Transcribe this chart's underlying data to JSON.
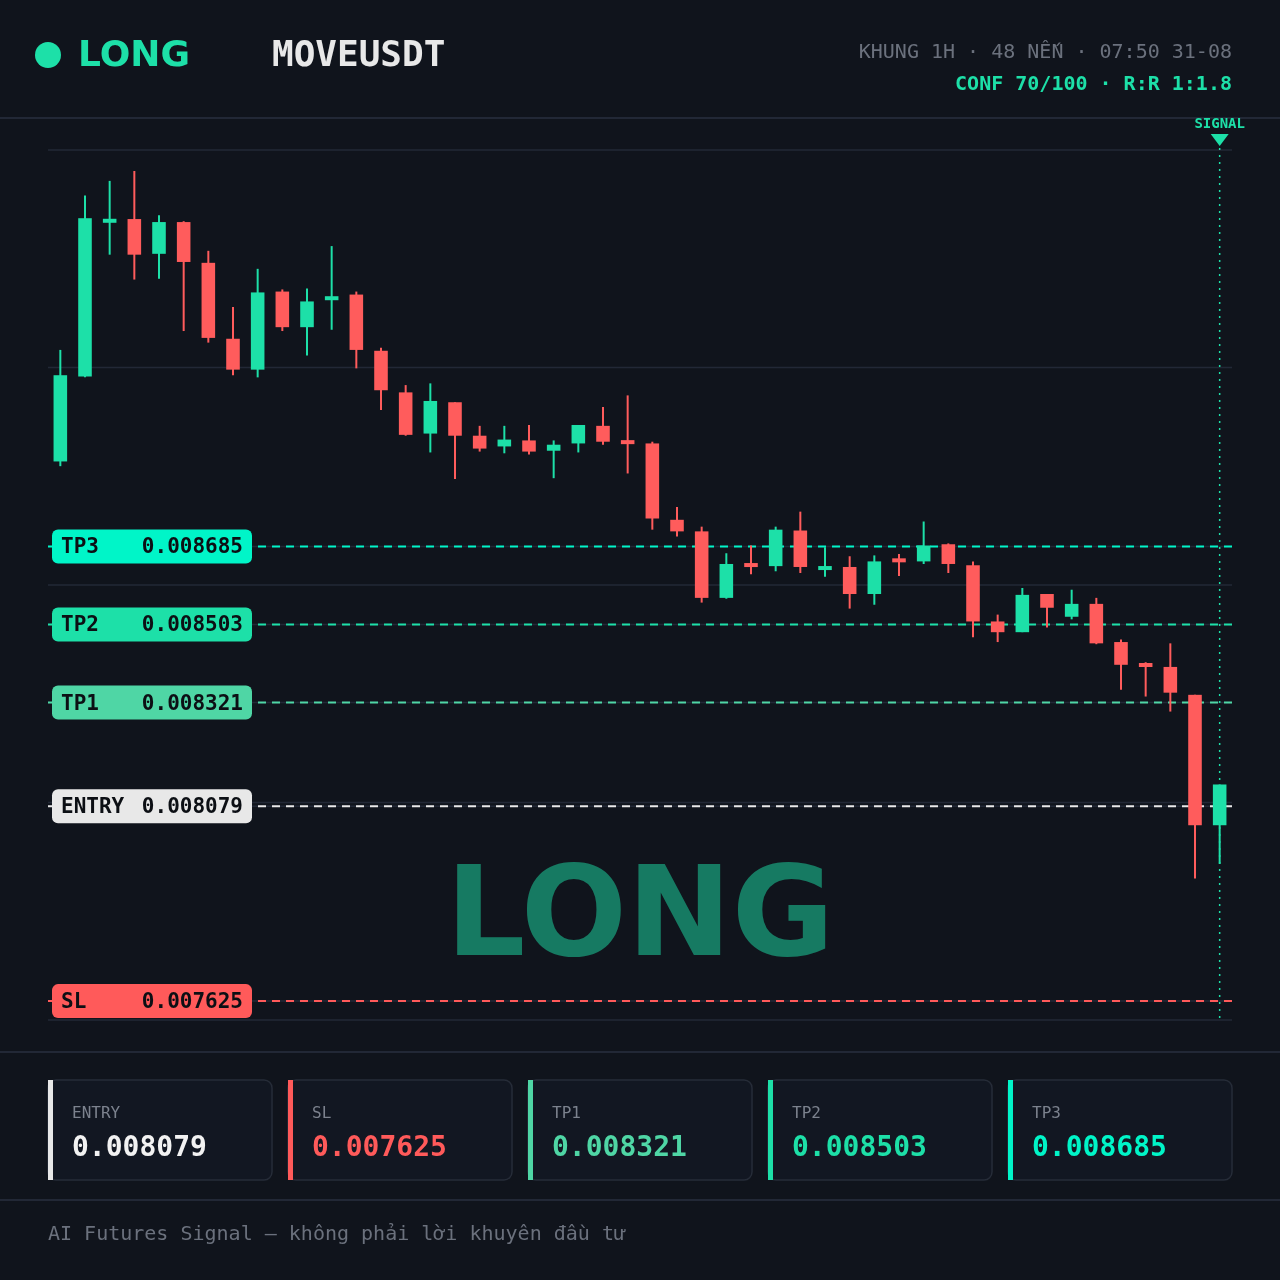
{
  "chart_data": {
    "type": "candlestick",
    "title": "MOVEUSDT",
    "subtitle": "KHUNG 1H · 48 NẾN · 07:50 31-08",
    "annotations": [
      "LONG",
      "CONF 70/100 · R:R 1:1.8",
      "LONG",
      "ENTRY",
      "0.008079",
      "SL",
      "0.007625",
      "TP1",
      "0.008321",
      "TP2",
      "0.008503",
      "TP3",
      "0.008685",
      "AI Futures Signal — không phải lời khuyên đầu tư",
      "SIGNAL"
    ],
    "categories": [
      null,
      null,
      null,
      null,
      null,
      null,
      null,
      null,
      null,
      null,
      null,
      null,
      null,
      null,
      null,
      null,
      null,
      null,
      null,
      null,
      null,
      null,
      null,
      null,
      null,
      null,
      null,
      null,
      null,
      null,
      null,
      null,
      null,
      null,
      null,
      null,
      null,
      null,
      null,
      null,
      null,
      null,
      null,
      null,
      null,
      null,
      null,
      null
    ],
    "tick_labels": "y",
    "ylim": [
      0.007581,
      0.009609
    ],
    "yticks": [
      {
        "value": 0.007581,
        "label": null
      },
      0.007625,
      0.008079,
      {
        "value": 0.008088,
        "label": null
      },
      0.008321,
      0.008503,
      {
        "value": 0.008595,
        "label": null
      },
      0.008685,
      {
        "value": 0.009102,
        "label": null
      },
      {
        "value": 0.009609,
        "label": null
      }
    ],
    "grid": "y",
    "ohlc": [
      [
        0.008883,
        0.009143,
        0.008872,
        0.009084
      ],
      [
        0.009081,
        0.009503,
        0.009079,
        0.00945
      ],
      [
        0.009443,
        0.009537,
        0.009365,
        0.009445
      ],
      [
        0.009448,
        0.00956,
        0.009307,
        0.009365
      ],
      [
        0.009367,
        0.009457,
        0.009309,
        0.009441
      ],
      [
        0.009441,
        0.009443,
        0.009187,
        0.009348
      ],
      [
        0.009346,
        0.009374,
        0.00916,
        0.009171
      ],
      [
        0.009169,
        0.009243,
        0.009084,
        0.009097
      ],
      [
        0.009097,
        0.009332,
        0.009079,
        0.009277
      ],
      [
        0.009279,
        0.009284,
        0.009187,
        0.009196
      ],
      [
        0.009196,
        0.009286,
        0.00913,
        0.009256
      ],
      [
        0.009261,
        0.009385,
        0.00919,
        0.009266
      ],
      [
        0.009272,
        0.009279,
        0.0091,
        0.009143
      ],
      [
        0.009141,
        0.009148,
        0.009003,
        0.009049
      ],
      [
        0.009044,
        0.009061,
        0.008943,
        0.008945
      ],
      [
        0.008948,
        0.009065,
        0.008904,
        0.009024
      ],
      [
        0.009021,
        0.009021,
        0.008842,
        0.008943
      ],
      [
        0.008943,
        0.008966,
        0.008906,
        0.008913
      ],
      [
        0.008918,
        0.008966,
        0.008902,
        0.008934
      ],
      [
        0.008932,
        0.008968,
        0.008899,
        0.008906
      ],
      [
        0.008908,
        0.008932,
        0.008844,
        0.008922
      ],
      [
        0.008925,
        0.008968,
        0.008904,
        0.008968
      ],
      [
        0.008966,
        0.00901,
        0.008922,
        0.008929
      ],
      [
        0.008929,
        0.009037,
        0.008855,
        0.008927
      ],
      [
        0.008925,
        0.008929,
        0.008724,
        0.00875
      ],
      [
        0.008747,
        0.008777,
        0.008708,
        0.00872
      ],
      [
        0.00872,
        0.008731,
        0.008554,
        0.008565
      ],
      [
        0.008565,
        0.008669,
        0.008563,
        0.008644
      ],
      [
        0.008644,
        0.008687,
        0.00862,
        0.008639
      ],
      [
        0.008639,
        0.008731,
        0.008627,
        0.008724
      ],
      [
        0.008722,
        0.008766,
        0.008623,
        0.008637
      ],
      [
        0.008632,
        0.008683,
        0.008614,
        0.008637
      ],
      [
        0.008637,
        0.008662,
        0.00854,
        0.008574
      ],
      [
        0.008574,
        0.008664,
        0.008549,
        0.00865
      ],
      [
        0.008655,
        0.008667,
        0.008616,
        0.00865
      ],
      [
        0.00865,
        0.008743,
        0.008644,
        0.008687
      ],
      [
        0.00869,
        0.008692,
        0.008623,
        0.008644
      ],
      [
        0.008641,
        0.00865,
        0.008473,
        0.00851
      ],
      [
        0.00851,
        0.008526,
        0.008462,
        0.008485
      ],
      [
        0.008485,
        0.008588,
        0.008485,
        0.008572
      ],
      [
        0.008574,
        0.008574,
        0.008496,
        0.008542
      ],
      [
        0.008521,
        0.008584,
        0.008515,
        0.008551
      ],
      [
        0.008551,
        0.008565,
        0.008457,
        0.008459
      ],
      [
        0.008462,
        0.008468,
        0.008351,
        0.008409
      ],
      [
        0.008411,
        0.008415,
        0.008335,
        0.008406
      ],
      [
        0.008404,
        0.008459,
        0.0083,
        0.008344
      ],
      [
        0.008339,
        0.008339,
        0.007911,
        0.008035
      ],
      [
        0.008035,
        0.00813,
        0.007945,
        0.00813
      ]
    ],
    "colors": [
      "#1de0a8",
      "#1de0a8",
      "#1de0a8",
      "#ff5c5c",
      "#1de0a8",
      "#ff5c5c",
      "#ff5c5c",
      "#ff5c5c",
      "#1de0a8",
      "#ff5c5c",
      "#1de0a8",
      "#1de0a8",
      "#ff5c5c",
      "#ff5c5c",
      "#ff5c5c",
      "#1de0a8",
      "#ff5c5c",
      "#ff5c5c",
      "#1de0a8",
      "#ff5c5c",
      "#1de0a8",
      "#1de0a8",
      "#ff5c5c",
      "#ff5c5c",
      "#ff5c5c",
      "#ff5c5c",
      "#ff5c5c",
      "#1de0a8",
      "#ff5c5c",
      "#1de0a8",
      "#ff5c5c",
      "#1de0a8",
      "#ff5c5c",
      "#1de0a8",
      "#ff5c5c",
      "#1de0a8",
      "#ff5c5c",
      "#ff5c5c",
      "#ff5c5c",
      "#1de0a8",
      "#ff5c5c",
      "#1de0a8",
      "#ff5c5c",
      "#ff5c5c",
      "#ff5c5c",
      "#ff5c5c",
      "#ff5c5c",
      "#1de0a8"
    ],
    "ref_lines": [
      {
        "axis": "y",
        "value": 0.008079,
        "label": "ENTRY",
        "color": "#e8e8e8",
        "line_style": "dashed"
      },
      {
        "axis": "y",
        "value": 0.007625,
        "label": "SL",
        "color": "#ff5a5a",
        "line_style": "dashed"
      },
      {
        "axis": "y",
        "value": 0.008321,
        "label": "TP1",
        "color": "#4fd6a5",
        "line_style": "dashed"
      },
      {
        "axis": "y",
        "value": 0.008503,
        "label": "TP2",
        "color": "#1de0a8",
        "line_style": "dashed"
      },
      {
        "axis": "y",
        "value": 0.008685,
        "label": "TP3",
        "color": "#00f5c8",
        "line_style": "dashed"
      }
    ]
  }
}
